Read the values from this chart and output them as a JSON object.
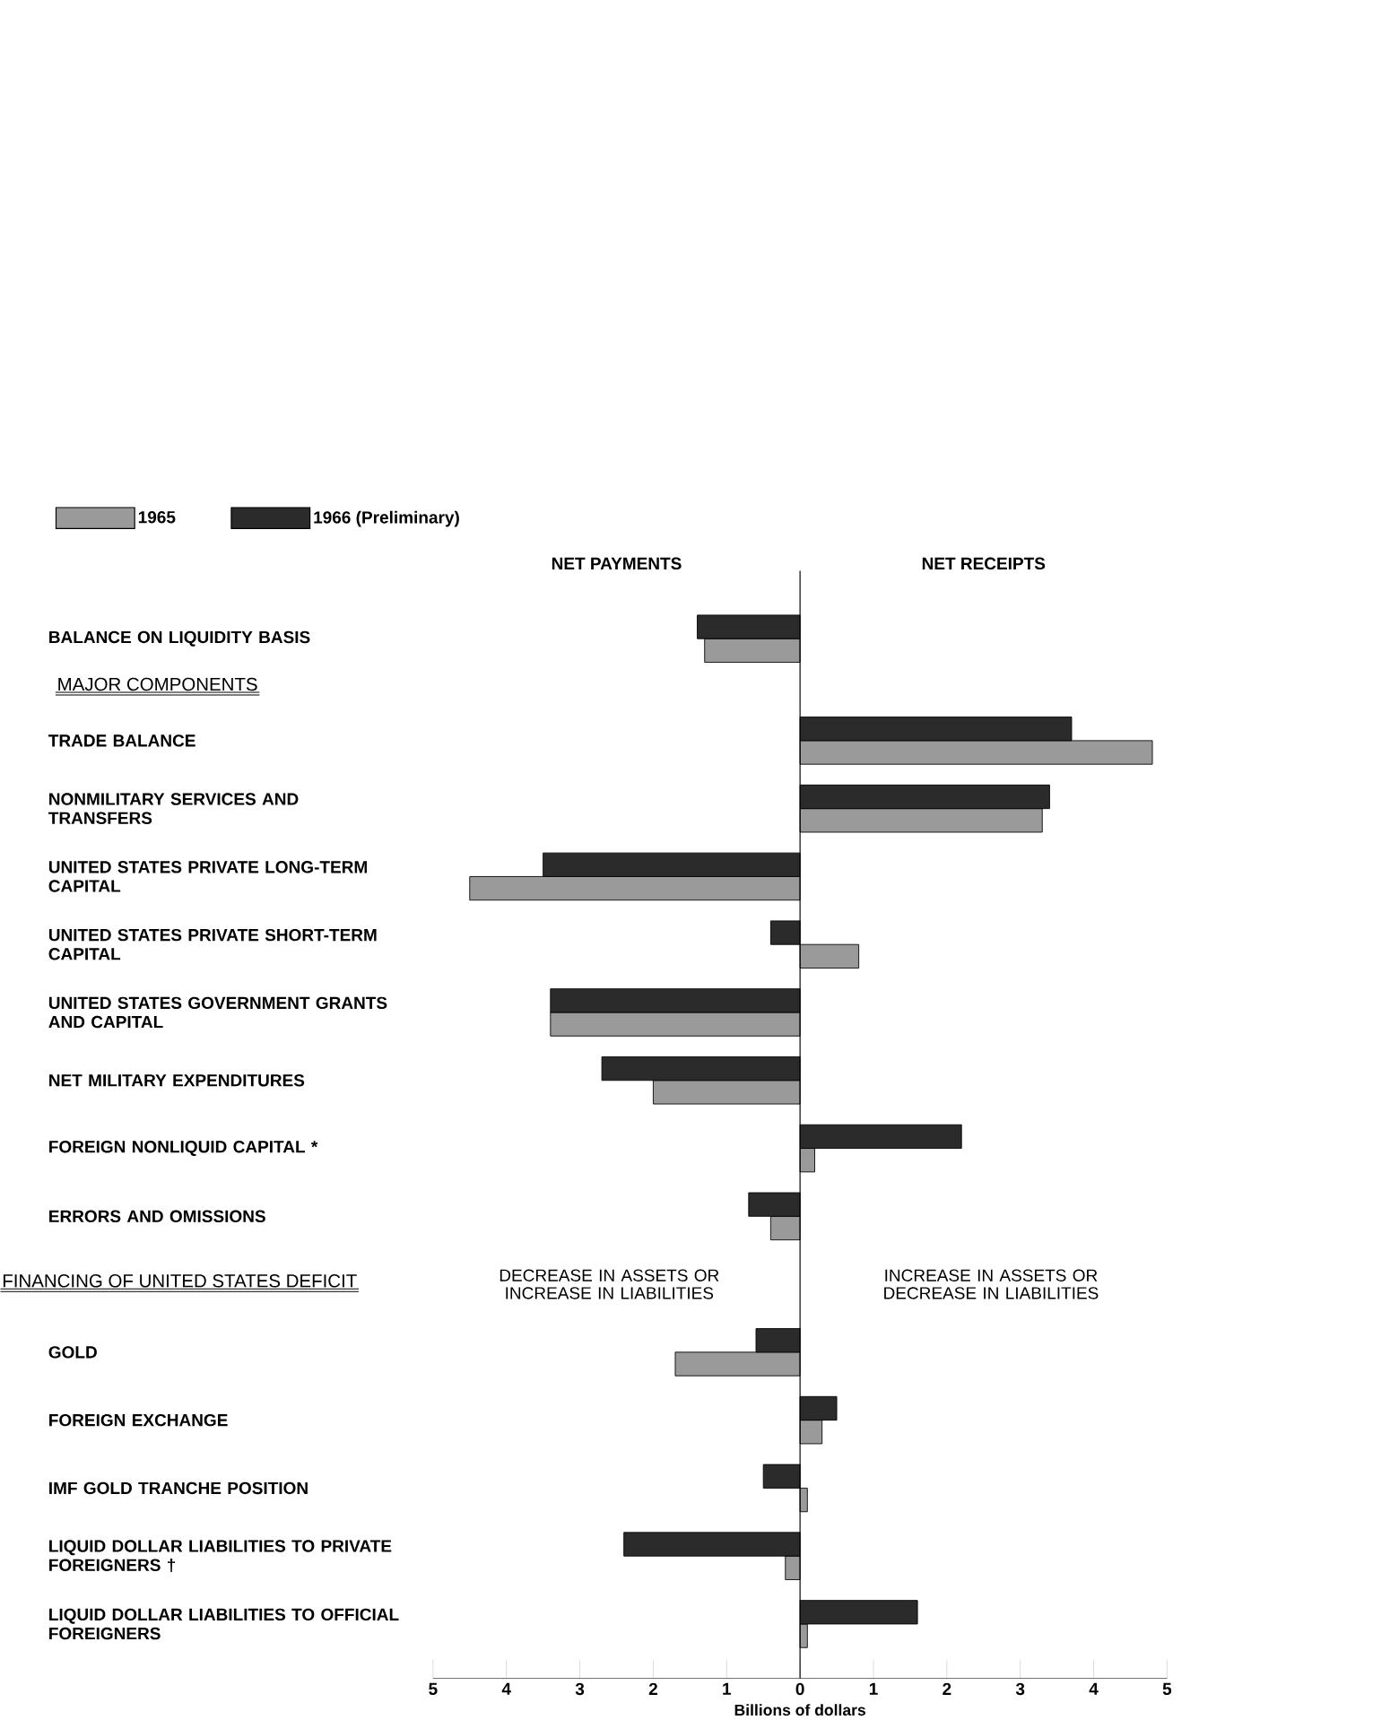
{
  "chart_data": {
    "type": "bar",
    "orientation": "horizontal",
    "xlabel": "Billions of dollars",
    "categories": [
      "BALANCE ON LIQUIDITY BASIS",
      "TRADE BALANCE",
      "NONMILITARY SERVICES AND TRANSFERS",
      "UNITED STATES PRIVATE LONG-TERM CAPITAL",
      "UNITED STATES PRIVATE SHORT-TERM CAPITAL",
      "UNITED STATES GOVERNMENT GRANTS AND CAPITAL",
      "NET MILITARY EXPENDITURES",
      "FOREIGN NONLIQUID CAPITAL *",
      "ERRORS AND OMISSIONS",
      "GOLD",
      "FOREIGN EXCHANGE",
      "IMF GOLD TRANCHE POSITION",
      "LIQUID DOLLAR LIABILITIES TO PRIVATE FOREIGNERS †",
      "LIQUID DOLLAR LIABILITIES TO OFFICIAL FOREIGNERS"
    ],
    "series": [
      {
        "name": "1965",
        "color": "#9a9a9a",
        "values": [
          -1.3,
          4.8,
          3.3,
          -4.5,
          0.8,
          -3.4,
          -2.0,
          0.2,
          -0.4,
          -1.7,
          0.3,
          0.1,
          -0.2,
          0.1
        ]
      },
      {
        "name": "1966 (Preliminary)",
        "color": "#2b2b2b",
        "values": [
          -1.4,
          3.7,
          3.4,
          -3.5,
          -0.4,
          -3.4,
          -2.7,
          2.2,
          -0.7,
          -0.6,
          0.5,
          -0.5,
          -2.4,
          1.6
        ]
      }
    ],
    "xlim": [
      -5,
      5
    ],
    "xticks": [
      {
        "value": -5,
        "label": "5"
      },
      {
        "value": -4,
        "label": "4"
      },
      {
        "value": -3,
        "label": "3"
      },
      {
        "value": -2,
        "label": "2"
      },
      {
        "value": -1,
        "label": "1"
      },
      0,
      1,
      2,
      3,
      4,
      5
    ],
    "ref_lines": [
      {
        "axis": "x",
        "value": 0
      }
    ],
    "legend": "top left",
    "annotations": [
      "NET PAYMENTS",
      "NET RECEIPTS",
      "MAJOR COMPONENTS",
      "FINANCING OF UNITED STATES DEFICIT",
      "DECREASE IN ASSETS OR INCREASE IN LIABILITIES",
      "INCREASE IN ASSETS OR DECREASE IN LIABILITIES"
    ]
  }
}
